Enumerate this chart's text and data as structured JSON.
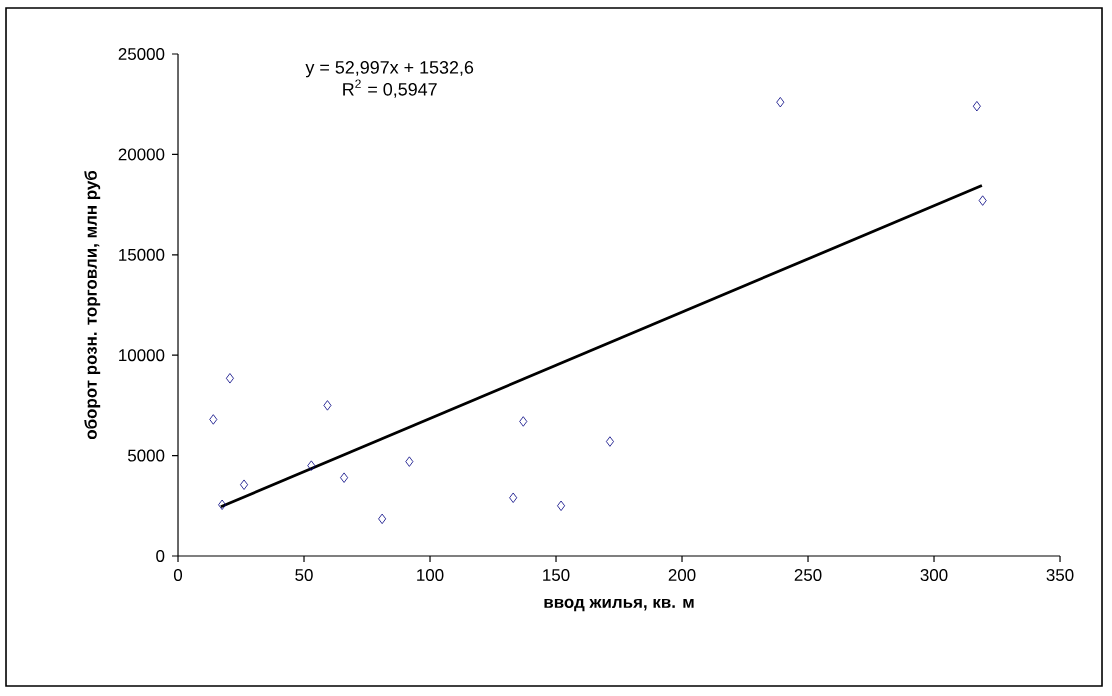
{
  "chart_data": {
    "type": "scatter",
    "xlabel": "ввод жилья, кв. м",
    "ylabel": "оборот розн. торговли, млн руб",
    "annotations": [
      "y = 52,997x + 1532,6",
      "R$^{2}$ = 0,5947"
    ],
    "xlim": [
      0,
      350
    ],
    "xticks": [
      0,
      50,
      100,
      150,
      200,
      250,
      300,
      350
    ],
    "ylim": [
      0,
      25000
    ],
    "yticks": [
      0,
      5000,
      10000,
      15000,
      20000,
      25000
    ],
    "grid": false,
    "marker": "diamond",
    "series": [
      {
        "color": "#000080",
        "x": [
          14,
          17.5,
          20.6,
          26.2,
          52.9,
          59.3,
          65.9,
          81,
          91.8,
          133,
          137,
          152,
          171.4,
          239,
          317,
          319.3
        ],
        "values": [
          6800,
          2550,
          8850,
          3550,
          4500,
          7500,
          3900,
          1850,
          4700,
          2900,
          6700,
          2500,
          5700,
          22600,
          22400,
          17700
        ]
      },
      {
        "type": "line",
        "color": "#000000",
        "marker": "none",
        "x": [
          17,
          319
        ],
        "values": [
          2450,
          18450
        ]
      }
    ]
  }
}
